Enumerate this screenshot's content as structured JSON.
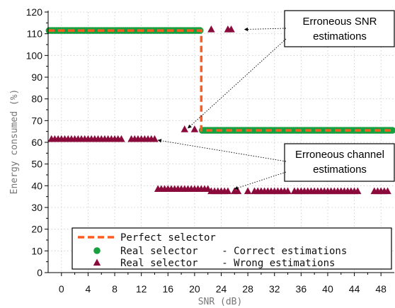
{
  "chart_data": {
    "type": "scatter",
    "xlabel": "SNR (dB)",
    "ylabel": "Energy consumed (%)",
    "xlim": [
      -2,
      50
    ],
    "ylim": [
      0,
      120
    ],
    "xticks": [
      0,
      4,
      8,
      12,
      16,
      20,
      24,
      28,
      32,
      36,
      40,
      44,
      48
    ],
    "yticks": [
      0,
      10,
      20,
      30,
      40,
      50,
      60,
      70,
      80,
      90,
      100,
      110,
      120
    ],
    "grid": true,
    "legend_position": "bottom",
    "colors": {
      "perfect": "#ff5a1f",
      "correct": "#18a040",
      "wrong": "#8b0a3c"
    },
    "series": [
      {
        "name": "Perfect selector",
        "style": "dashed-line",
        "x": [
          -2,
          21,
          21,
          50
        ],
        "y": [
          111.5,
          111.5,
          65.5,
          65.5
        ]
      },
      {
        "name": "Real selector    - Correct estimations",
        "style": "circle",
        "segments": [
          {
            "x_start": -2,
            "x_end": 21,
            "y": 111.5
          },
          {
            "x_start": 21,
            "x_end": 50,
            "y": 65.5
          }
        ]
      },
      {
        "name": "Real selector    - Wrong estimations",
        "style": "triangle",
        "groups": [
          {
            "y": 61.5,
            "x": [
              -1.5,
              -1,
              -0.5,
              0,
              0.5,
              1,
              1.5,
              2,
              2.5,
              3,
              3.5,
              4,
              4.5,
              5,
              5.5,
              6,
              6.5,
              7,
              7.5,
              8,
              8.5,
              9,
              10.5,
              11,
              11.5,
              12,
              12.5,
              13,
              13.5,
              14
            ]
          },
          {
            "y": 66,
            "x": [
              18.5,
              20
            ]
          },
          {
            "y": 112,
            "x": [
              22.5,
              25,
              25.5
            ]
          },
          {
            "y": 38.5,
            "x": [
              14.5,
              15,
              15.5,
              16,
              16.5,
              17,
              17.5,
              18,
              18.5,
              19,
              19.5,
              20,
              20.5,
              21,
              21.5,
              22
            ]
          },
          {
            "y": 37.5,
            "x": [
              22.5,
              23,
              23.5,
              24,
              24.5,
              25,
              26,
              26.5,
              28,
              29,
              29.5,
              30,
              30.5,
              31,
              31.5,
              32,
              32.5,
              33,
              33.5,
              34,
              35,
              35.5,
              36,
              36.5,
              37,
              37.5,
              38,
              38.5,
              39,
              39.5,
              40,
              40.5,
              41,
              41.5,
              42,
              42.5,
              43,
              43.5,
              44,
              44.5,
              47,
              47.5,
              48,
              48.5,
              49
            ]
          }
        ]
      }
    ],
    "annotations": [
      {
        "lines": [
          "Erroneous SNR",
          "estimations"
        ],
        "arrow_targets": [
          [
            27.5,
            112
          ],
          [
            19,
            66.5
          ]
        ]
      },
      {
        "lines": [
          "Erroneous channel",
          "estimations"
        ],
        "arrow_targets": [
          [
            14.5,
            61
          ],
          [
            26,
            38.5
          ]
        ]
      }
    ]
  }
}
